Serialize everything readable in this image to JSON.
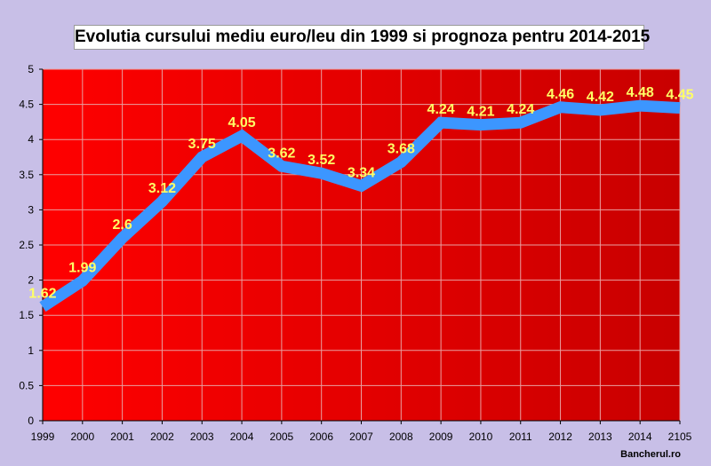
{
  "chart_data": {
    "type": "line",
    "title": "Evolutia cursului mediu euro/leu din 1999 si prognoza pentru 2014-2015",
    "categories": [
      "1999",
      "2000",
      "2001",
      "2002",
      "2003",
      "2004",
      "2005",
      "2006",
      "2007",
      "2008",
      "2009",
      "2010",
      "2011",
      "2012",
      "2013",
      "2014",
      "2105"
    ],
    "series": [
      {
        "values": [
          1.62,
          1.99,
          2.6,
          3.12,
          3.75,
          4.05,
          3.62,
          3.52,
          3.34,
          3.68,
          4.24,
          4.21,
          4.24,
          4.46,
          4.42,
          4.48,
          4.45
        ],
        "labels": [
          "1.62",
          "1.99",
          "2.6",
          "3.12",
          "3.75",
          "4.05",
          "3.62",
          "3.52",
          "3.34",
          "3.68",
          "4.24",
          "4.21",
          "4.24",
          "4.46",
          "4.42",
          "4.48",
          "4.45"
        ]
      }
    ],
    "ylim": [
      0,
      5
    ],
    "yticks": [
      "0",
      "0.5",
      "1",
      "1.5",
      "2",
      "2.5",
      "3",
      "3.5",
      "4",
      "4.5",
      "5"
    ],
    "grid": true,
    "colors": {
      "plot_bg_left": "#ff0000",
      "plot_bg_right": "#c80000",
      "line": "#3c96ff",
      "data_label": "#ffff66",
      "grid": "#e8a0a0",
      "page_bg": "#c8bfe7"
    }
  },
  "credit": "Bancherul.ro"
}
